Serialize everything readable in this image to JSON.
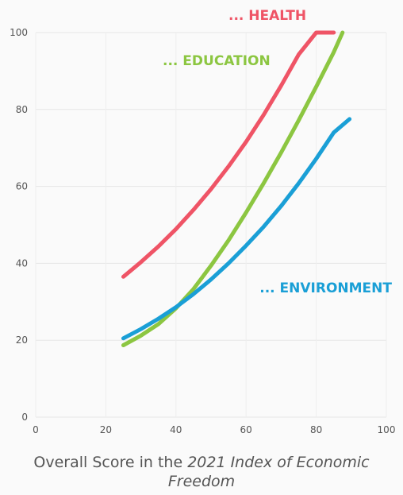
{
  "chart_data": {
    "type": "line",
    "xlabel": {
      "prefix": "Overall Score in the ",
      "emphasis": "2021 Index of Economic Freedom"
    },
    "ylabel": "",
    "xlim": [
      0,
      100
    ],
    "ylim": [
      0,
      100
    ],
    "x_ticks": [
      0,
      20,
      40,
      60,
      80,
      100
    ],
    "y_ticks": [
      0,
      20,
      40,
      60,
      80,
      100
    ],
    "grid": true,
    "colors": {
      "health": "#ef5466",
      "education": "#8cc641",
      "environment": "#1a9fd6"
    },
    "series": [
      {
        "key": "health",
        "name": "... HEALTH",
        "x": [
          25,
          30,
          35,
          40,
          45,
          50,
          55,
          60,
          65,
          70,
          75,
          80,
          85
        ],
        "y": [
          36.5,
          40.3,
          44.4,
          48.9,
          53.9,
          59.3,
          65.2,
          71.6,
          78.6,
          86.2,
          94.3,
          100,
          100
        ]
      },
      {
        "key": "education",
        "name": "... EDUCATION",
        "x": [
          25,
          30,
          35,
          40,
          45,
          50,
          55,
          60,
          65,
          70,
          75,
          80,
          85,
          87.5
        ],
        "y": [
          18.7,
          21.2,
          24.2,
          28.3,
          33.3,
          39.4,
          46.0,
          53.2,
          60.8,
          68.8,
          77.2,
          85.9,
          94.9,
          100
        ]
      },
      {
        "key": "environment",
        "name": "... ENVIRONMENT",
        "x": [
          25,
          30,
          35,
          40,
          45,
          50,
          55,
          60,
          65,
          70,
          75,
          80,
          85,
          89.5
        ],
        "y": [
          20.5,
          22.9,
          25.6,
          28.6,
          32.0,
          35.8,
          40.0,
          44.6,
          49.5,
          54.9,
          60.8,
          67.2,
          74.0,
          77.5
        ]
      }
    ]
  }
}
